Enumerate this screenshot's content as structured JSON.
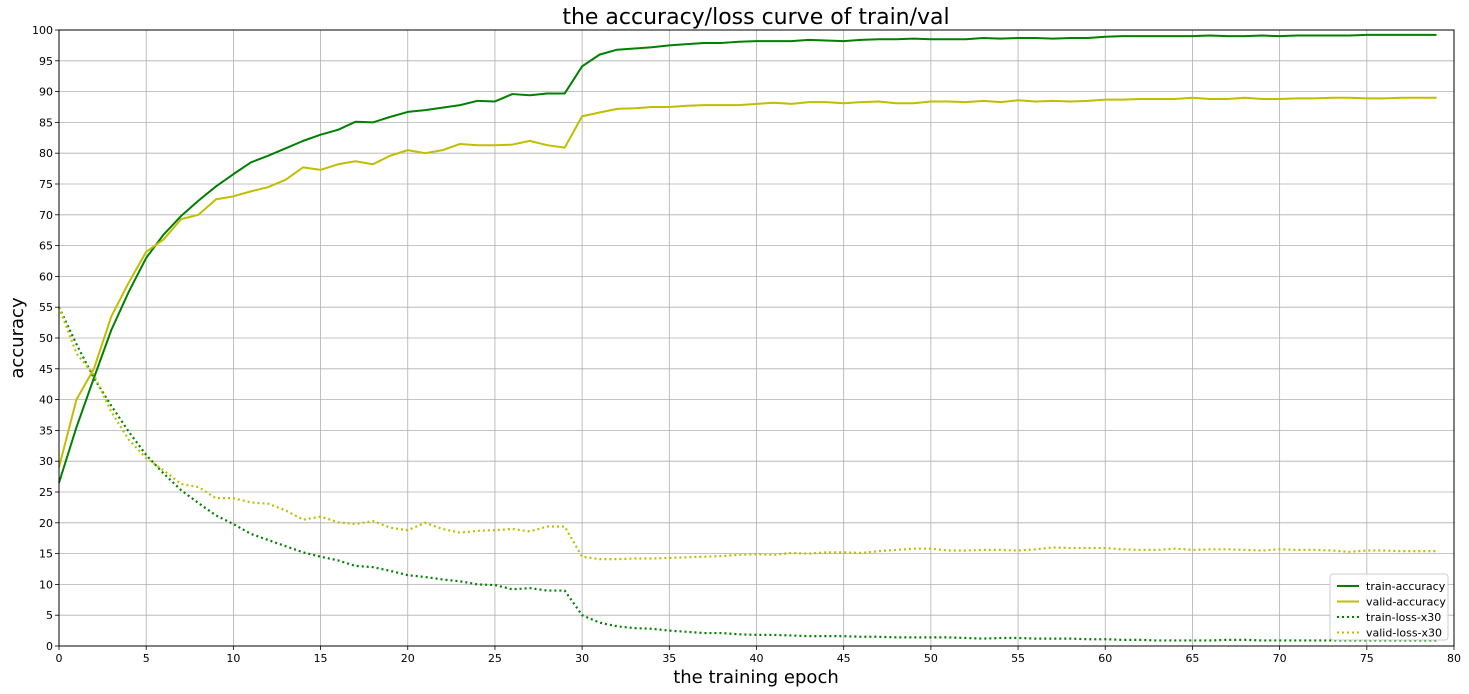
{
  "chart_data": {
    "type": "line",
    "title": "the accuracy/loss curve of train/val",
    "xlabel": "the training epoch",
    "ylabel": "accuracy",
    "xlim": [
      0,
      80
    ],
    "ylim": [
      0,
      100
    ],
    "xticks": [
      0,
      5,
      10,
      15,
      20,
      25,
      30,
      35,
      40,
      45,
      50,
      55,
      60,
      65,
      70,
      75,
      80
    ],
    "yticks": [
      0,
      5,
      10,
      15,
      20,
      25,
      30,
      35,
      40,
      45,
      50,
      55,
      60,
      65,
      70,
      75,
      80,
      85,
      90,
      95,
      100
    ],
    "grid": true,
    "legend_position": "lower-right",
    "x": [
      0,
      1,
      2,
      3,
      4,
      5,
      6,
      7,
      8,
      9,
      10,
      11,
      12,
      13,
      14,
      15,
      16,
      17,
      18,
      19,
      20,
      21,
      22,
      23,
      24,
      25,
      26,
      27,
      28,
      29,
      30,
      31,
      32,
      33,
      34,
      35,
      36,
      37,
      38,
      39,
      40,
      41,
      42,
      43,
      44,
      45,
      46,
      47,
      48,
      49,
      50,
      51,
      52,
      53,
      54,
      55,
      56,
      57,
      58,
      59,
      60,
      61,
      62,
      63,
      64,
      65,
      66,
      67,
      68,
      69,
      70,
      71,
      72,
      73,
      74,
      75,
      76,
      77,
      78,
      79
    ],
    "series": [
      {
        "name": "train-accuracy",
        "color": "#008000",
        "style": "solid",
        "values": [
          26.5,
          35.5,
          43.5,
          51.3,
          57.5,
          63.0,
          66.8,
          69.8,
          72.3,
          74.6,
          76.6,
          78.5,
          79.6,
          80.8,
          82.0,
          83.0,
          83.8,
          85.1,
          85.0,
          85.9,
          86.7,
          87.0,
          87.4,
          87.8,
          88.5,
          88.4,
          89.6,
          89.4,
          89.7,
          89.7,
          94.1,
          96.0,
          96.8,
          97.0,
          97.2,
          97.5,
          97.7,
          97.9,
          97.9,
          98.1,
          98.2,
          98.2,
          98.2,
          98.4,
          98.3,
          98.2,
          98.4,
          98.5,
          98.5,
          98.6,
          98.5,
          98.5,
          98.5,
          98.7,
          98.6,
          98.7,
          98.7,
          98.6,
          98.7,
          98.7,
          98.9,
          99.0,
          99.0,
          99.0,
          99.0,
          99.0,
          99.1,
          99.0,
          99.0,
          99.1,
          99.0,
          99.1,
          99.1,
          99.1,
          99.1,
          99.2,
          99.2,
          99.2,
          99.2,
          99.2
        ]
      },
      {
        "name": "valid-accuracy",
        "color": "#bfbf00",
        "style": "solid",
        "values": [
          29.0,
          40.0,
          45.0,
          53.5,
          59.0,
          64.0,
          66.0,
          69.3,
          70.0,
          72.5,
          73.0,
          73.8,
          74.5,
          75.7,
          77.7,
          77.3,
          78.2,
          78.7,
          78.2,
          79.6,
          80.5,
          80.0,
          80.5,
          81.5,
          81.3,
          81.3,
          81.4,
          82.0,
          81.3,
          80.9,
          86.0,
          86.6,
          87.2,
          87.3,
          87.5,
          87.5,
          87.7,
          87.8,
          87.8,
          87.8,
          88.0,
          88.2,
          88.0,
          88.3,
          88.3,
          88.1,
          88.3,
          88.4,
          88.1,
          88.1,
          88.4,
          88.4,
          88.3,
          88.5,
          88.3,
          88.6,
          88.4,
          88.5,
          88.4,
          88.5,
          88.7,
          88.7,
          88.8,
          88.8,
          88.8,
          89.0,
          88.8,
          88.8,
          89.0,
          88.8,
          88.8,
          88.9,
          88.9,
          89.0,
          89.0,
          88.9,
          88.9,
          89.0,
          89.0,
          89.0
        ]
      },
      {
        "name": "train-loss-x30",
        "color": "#008000",
        "style": "dotted",
        "values": [
          55.0,
          49.0,
          43.5,
          39.0,
          34.8,
          31.0,
          28.0,
          25.3,
          23.2,
          21.2,
          19.8,
          18.2,
          17.2,
          16.2,
          15.2,
          14.5,
          13.9,
          13.0,
          12.8,
          12.2,
          11.5,
          11.2,
          10.8,
          10.5,
          10.0,
          9.9,
          9.2,
          9.4,
          9.0,
          9.0,
          5.0,
          3.8,
          3.2,
          2.9,
          2.8,
          2.5,
          2.3,
          2.1,
          2.1,
          1.9,
          1.8,
          1.8,
          1.7,
          1.6,
          1.6,
          1.6,
          1.5,
          1.5,
          1.4,
          1.4,
          1.4,
          1.4,
          1.3,
          1.2,
          1.3,
          1.3,
          1.2,
          1.2,
          1.2,
          1.1,
          1.1,
          1.0,
          1.0,
          0.9,
          0.9,
          0.9,
          0.9,
          1.0,
          1.0,
          0.9,
          0.9,
          0.9,
          0.9,
          0.9,
          0.9,
          0.9,
          0.9,
          0.9,
          0.9,
          0.9
        ]
      },
      {
        "name": "valid-loss-x30",
        "color": "#bfbf00",
        "style": "dotted",
        "values": [
          55.0,
          47.5,
          44.0,
          38.0,
          33.5,
          30.5,
          28.5,
          26.3,
          25.8,
          24.0,
          24.0,
          23.3,
          23.1,
          22.0,
          20.5,
          21.0,
          20.1,
          19.8,
          20.3,
          19.2,
          18.8,
          20.0,
          19.0,
          18.4,
          18.7,
          18.8,
          19.0,
          18.6,
          19.4,
          19.4,
          14.5,
          14.1,
          14.1,
          14.2,
          14.2,
          14.3,
          14.4,
          14.5,
          14.6,
          14.8,
          14.9,
          14.8,
          15.1,
          15.0,
          15.2,
          15.2,
          15.1,
          15.4,
          15.6,
          15.8,
          15.8,
          15.5,
          15.5,
          15.6,
          15.6,
          15.5,
          15.7,
          16.0,
          15.9,
          15.9,
          15.9,
          15.7,
          15.6,
          15.6,
          15.8,
          15.6,
          15.7,
          15.7,
          15.6,
          15.5,
          15.7,
          15.6,
          15.6,
          15.5,
          15.3,
          15.5,
          15.5,
          15.4,
          15.4,
          15.4
        ]
      }
    ]
  }
}
